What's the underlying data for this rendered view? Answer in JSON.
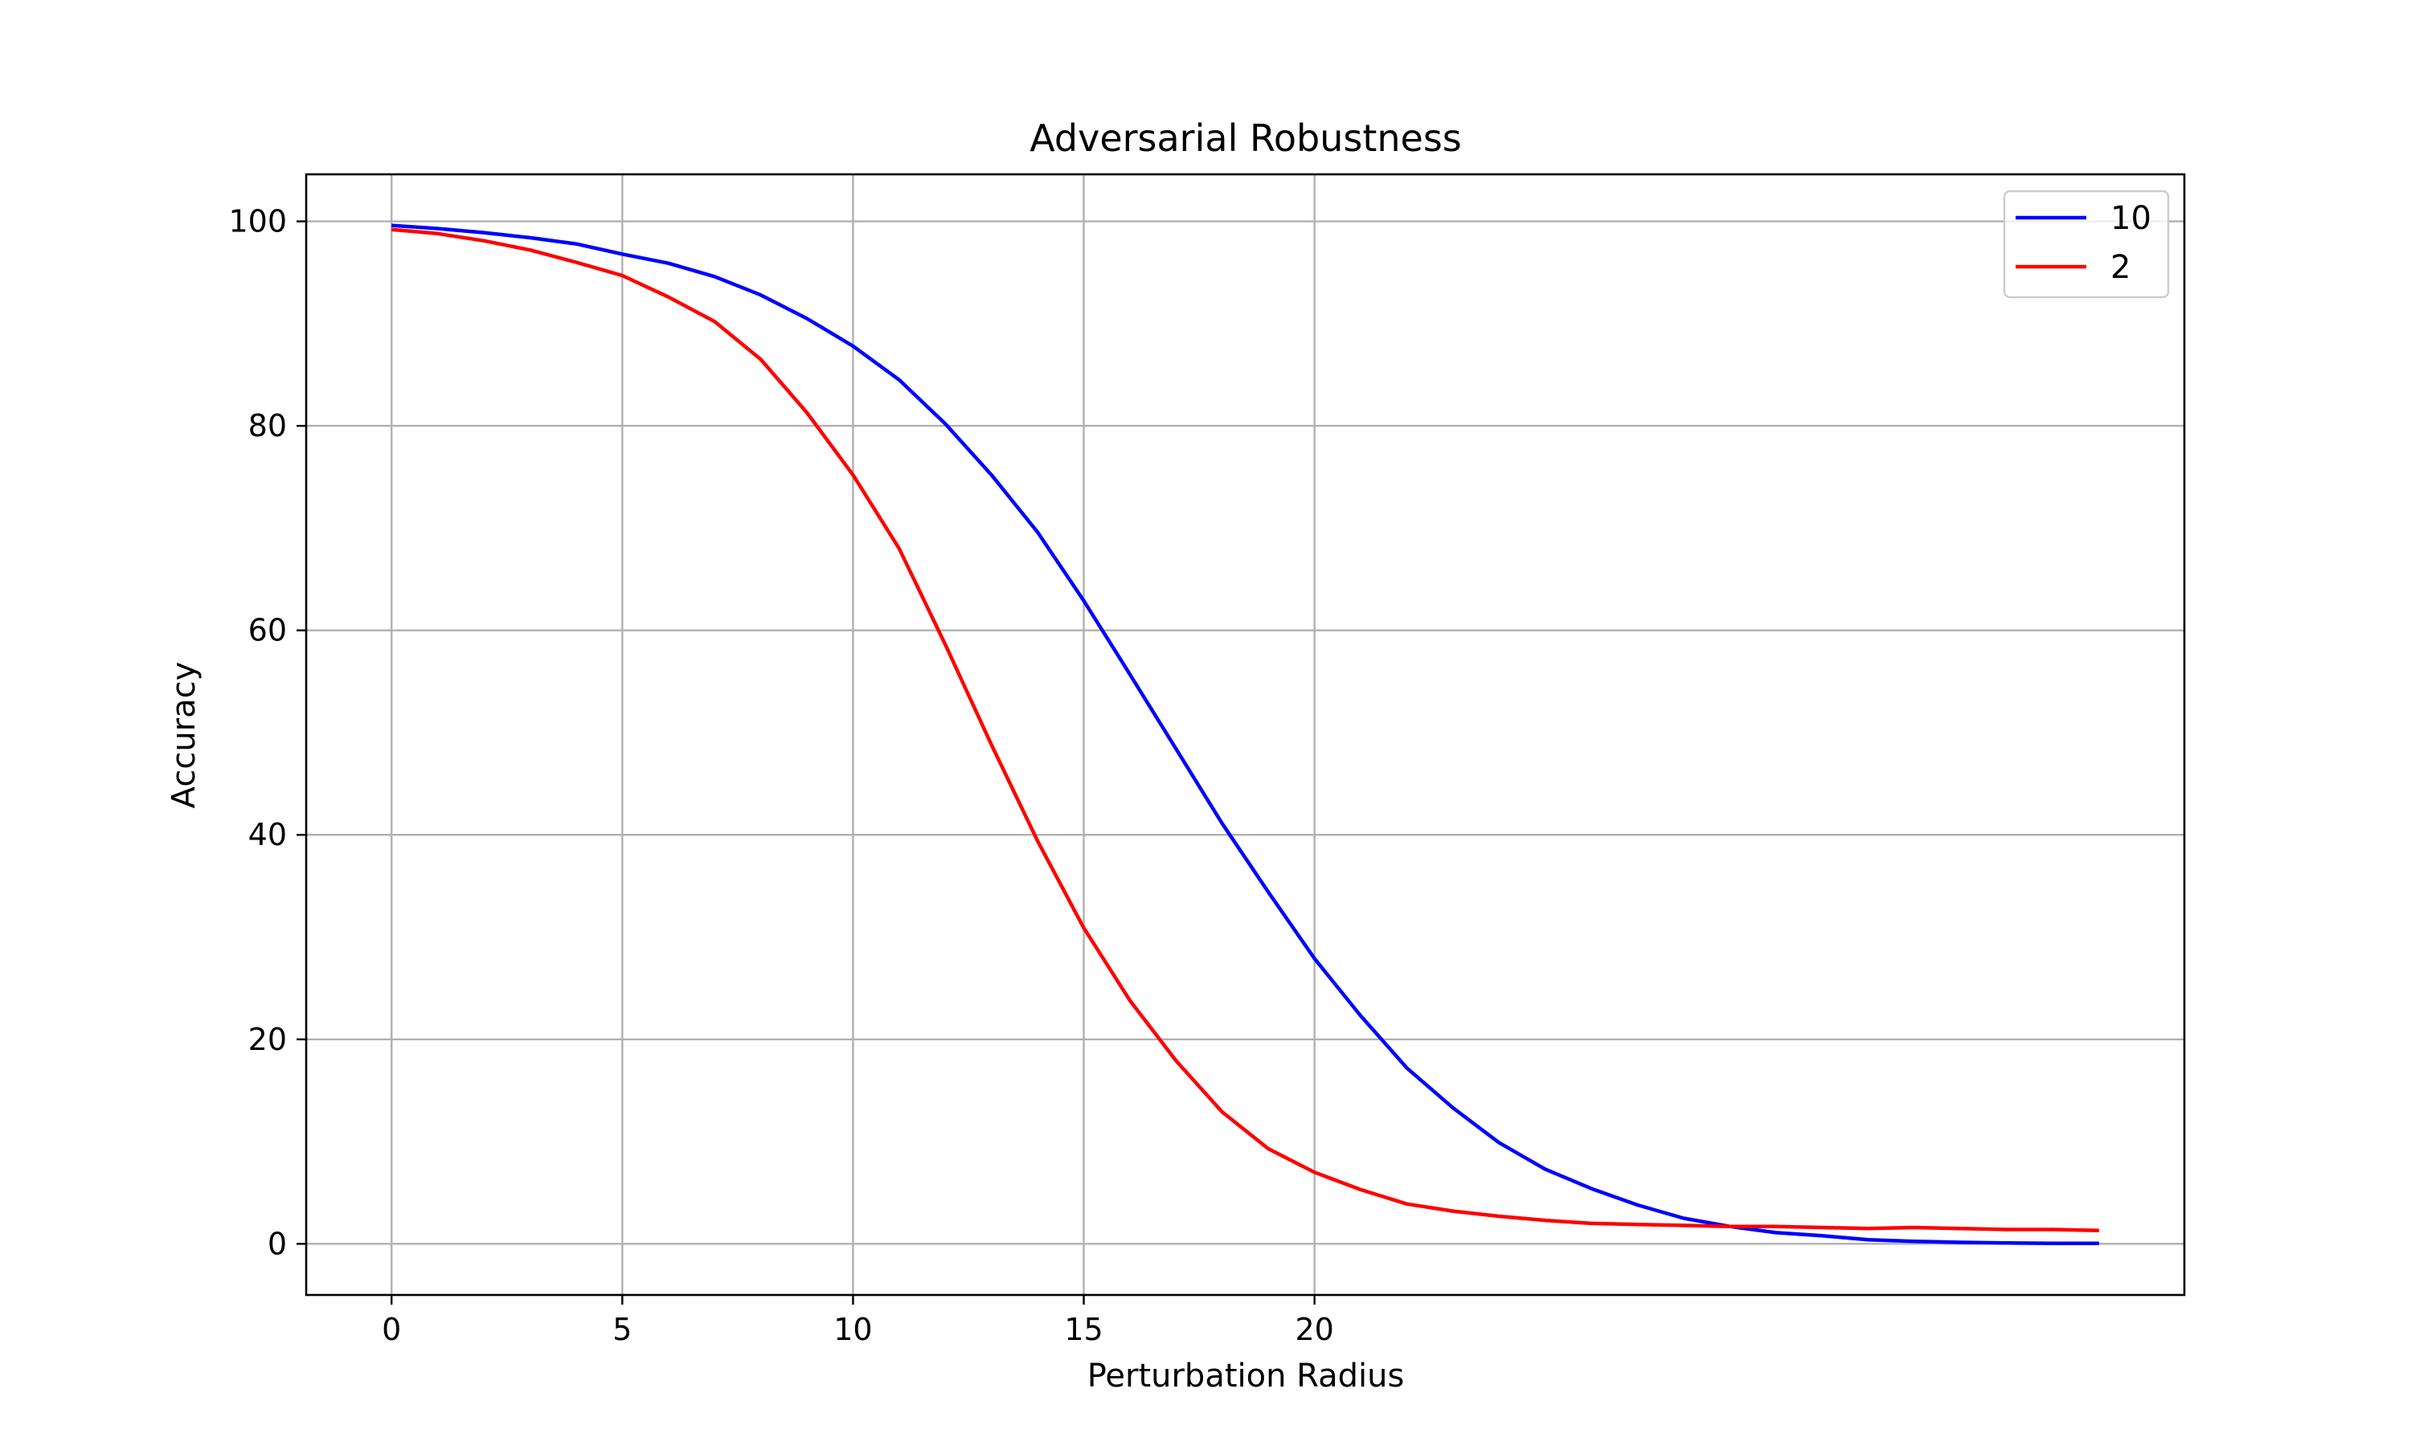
{
  "chart_data": {
    "type": "line",
    "title": "Adversarial Robustness",
    "xlabel": "Perturbation Radius",
    "ylabel": "Accuracy",
    "xlim": [
      -1.85,
      38.85
    ],
    "ylim": [
      -5,
      104.6
    ],
    "xticks": [
      0,
      5,
      10,
      15,
      20
    ],
    "yticks": [
      0,
      20,
      40,
      60,
      80,
      100
    ],
    "grid": true,
    "legend_position": "top-right",
    "series": [
      {
        "name": "10",
        "color": "#0000ff",
        "x": [
          0,
          1,
          2,
          3,
          4,
          5,
          6,
          7,
          8,
          9,
          10,
          11,
          12,
          13,
          14,
          15,
          16,
          17,
          18,
          19,
          20,
          21,
          22,
          23,
          24,
          25,
          26,
          27,
          28,
          29,
          30,
          31,
          32,
          33,
          34,
          35,
          36,
          37
        ],
        "y": [
          99.6,
          99.3,
          98.9,
          98.4,
          97.8,
          96.8,
          95.9,
          94.6,
          92.8,
          90.5,
          87.8,
          84.5,
          80.2,
          75.2,
          69.6,
          62.9,
          55.7,
          48.4,
          41.1,
          34.4,
          27.9,
          22.3,
          17.2,
          13.3,
          9.9,
          7.3,
          5.4,
          3.8,
          2.5,
          1.7,
          1.1,
          0.8,
          0.4,
          0.25,
          0.15,
          0.08,
          0.05,
          0.05
        ]
      },
      {
        "name": "2",
        "color": "#ff0000",
        "x": [
          0,
          1,
          2,
          3,
          4,
          5,
          6,
          7,
          8,
          9,
          10,
          11,
          12,
          13,
          14,
          15,
          16,
          17,
          18,
          19,
          20,
          21,
          22,
          23,
          24,
          25,
          26,
          27,
          28,
          29,
          30,
          31,
          32,
          33,
          34,
          35,
          36,
          37
        ],
        "y": [
          99.2,
          98.8,
          98.1,
          97.2,
          96.0,
          94.7,
          92.6,
          90.2,
          86.5,
          81.3,
          75.2,
          68.0,
          58.6,
          48.8,
          39.4,
          30.9,
          23.8,
          17.9,
          12.9,
          9.3,
          7.0,
          5.3,
          3.9,
          3.2,
          2.7,
          2.3,
          2.0,
          1.9,
          1.8,
          1.7,
          1.7,
          1.6,
          1.5,
          1.6,
          1.5,
          1.4,
          1.4,
          1.3
        ]
      }
    ]
  }
}
